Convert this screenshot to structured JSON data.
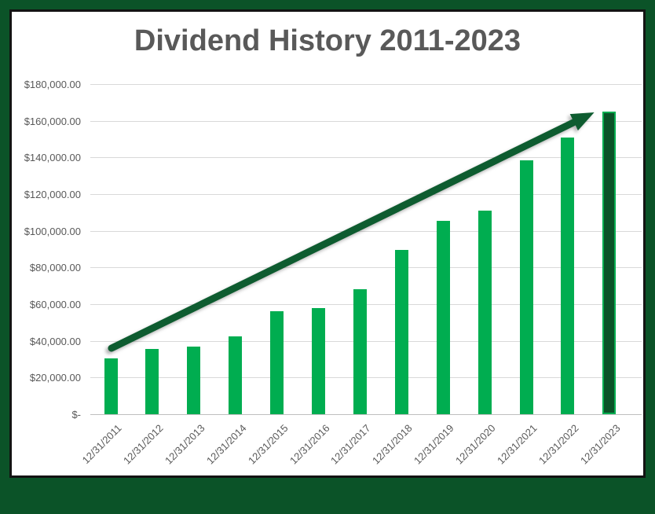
{
  "window": {
    "title": "Dividend History 2011-2023"
  },
  "chart_data": {
    "type": "bar",
    "title": "Dividend History 2011-2023",
    "categories": [
      "12/31/2011",
      "12/31/2012",
      "12/31/2013",
      "12/31/2014",
      "12/31/2015",
      "12/31/2016",
      "12/31/2017",
      "12/31/2018",
      "12/31/2019",
      "12/31/2020",
      "12/31/2021",
      "12/31/2022",
      "12/31/2023"
    ],
    "values": [
      30500,
      35500,
      37000,
      42500,
      56000,
      58000,
      68000,
      89500,
      105500,
      111000,
      138500,
      151000,
      165000
    ],
    "xlabel": "",
    "ylabel": "",
    "ylim": [
      0,
      180000
    ],
    "ytick_interval": 20000,
    "ytick_labels_top_down": [
      "$180,000.00",
      "$160,000.00",
      "$140,000.00",
      "$120,000.00",
      "$100,000.00",
      "$80,000.00",
      "$60,000.00",
      "$40,000.00",
      "$20,000.00",
      "$-"
    ],
    "grid": true,
    "legend": "none",
    "annotations": [
      "thick dark-green upward trend arrow from first bar to last bar"
    ],
    "colors": {
      "bar": "#00AD50",
      "last_bar_fill": "#0B5328",
      "last_bar_border": "#00AD50",
      "arrow": "#0E5C30",
      "gridline": "#D9D9D9",
      "axis_line": "#BFBFBF",
      "text": "#595959",
      "frame_outer": "#0B5328",
      "frame_inner": "#131313",
      "background": "#FFFFFF"
    }
  }
}
